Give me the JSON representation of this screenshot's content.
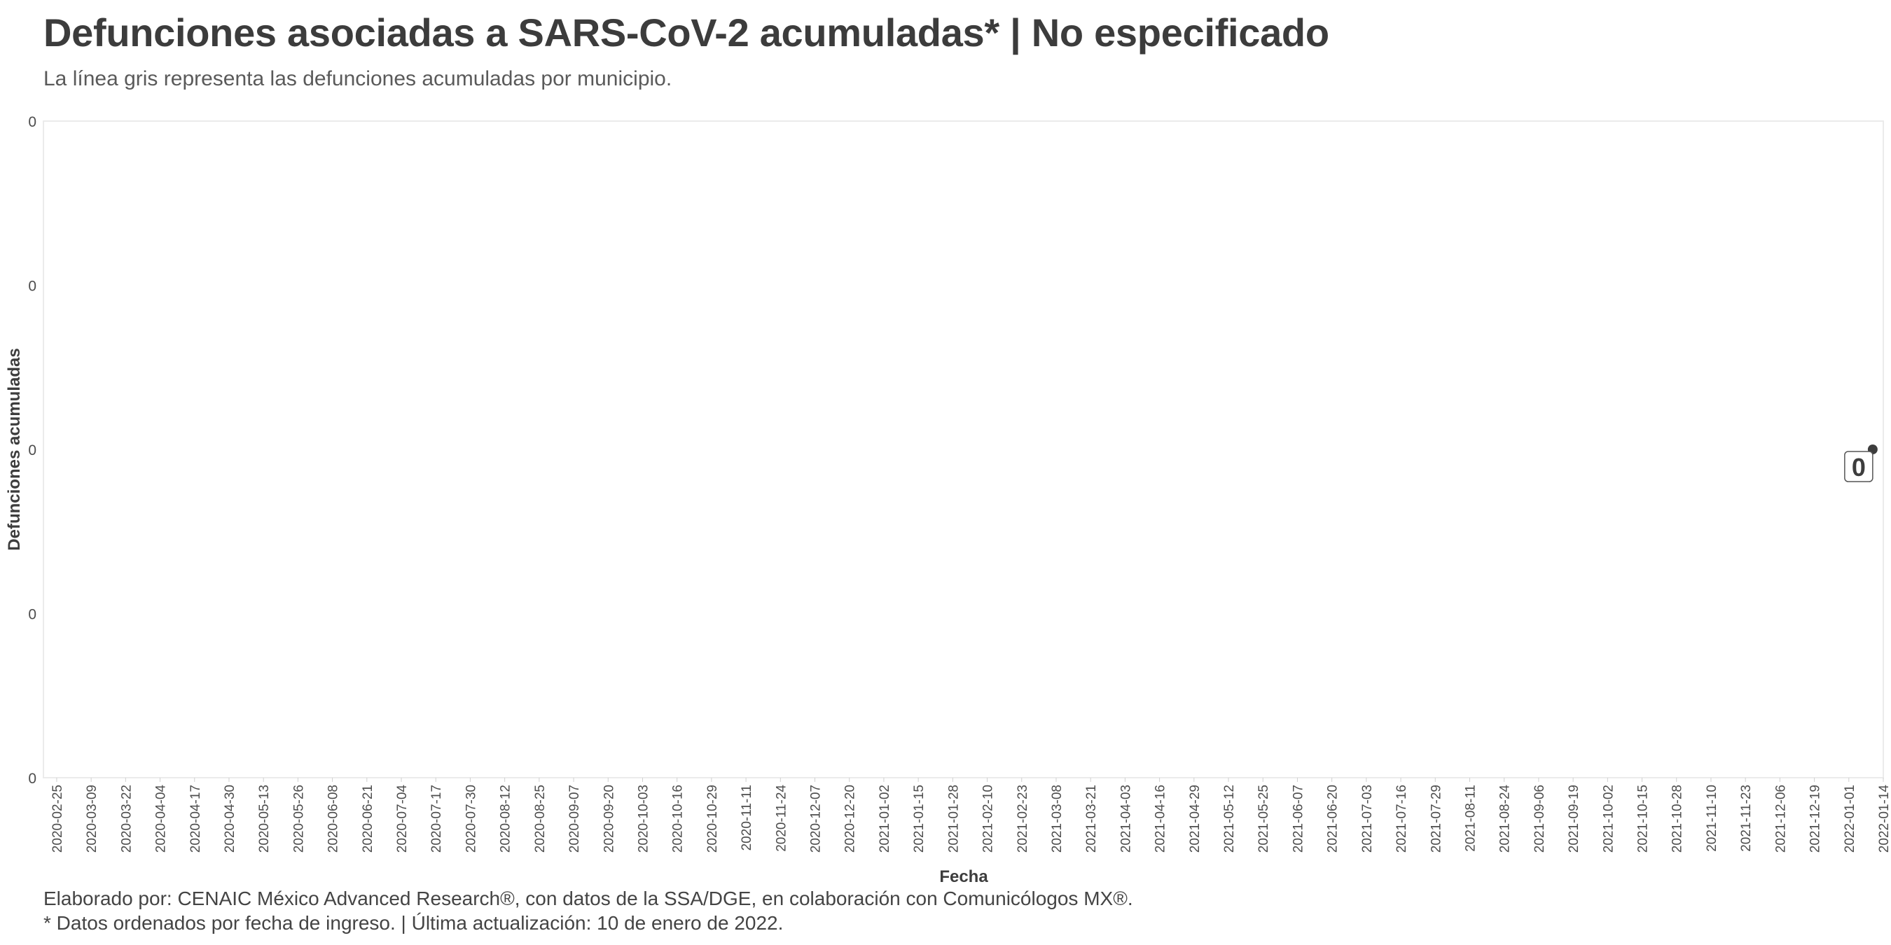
{
  "chart_data": {
    "type": "line",
    "title": "Defunciones asociadas a SARS-CoV-2 acumuladas* | No especificado",
    "subtitle": "La línea gris representa las defunciones acumuladas por municipio.",
    "xlabel": "Fecha",
    "ylabel": "Defunciones acumuladas",
    "x_ticks": [
      "2020-02-25",
      "2020-03-09",
      "2020-03-22",
      "2020-04-04",
      "2020-04-17",
      "2020-04-30",
      "2020-05-13",
      "2020-05-26",
      "2020-06-08",
      "2020-06-21",
      "2020-07-04",
      "2020-07-17",
      "2020-07-30",
      "2020-08-12",
      "2020-08-25",
      "2020-09-07",
      "2020-09-20",
      "2020-10-03",
      "2020-10-16",
      "2020-10-29",
      "2020-11-11",
      "2020-11-24",
      "2020-12-07",
      "2020-12-20",
      "2021-01-02",
      "2021-01-15",
      "2021-01-28",
      "2021-02-10",
      "2021-02-23",
      "2021-03-08",
      "2021-03-21",
      "2021-04-03",
      "2021-04-16",
      "2021-04-29",
      "2021-05-12",
      "2021-05-25",
      "2021-06-07",
      "2021-06-20",
      "2021-07-03",
      "2021-07-16",
      "2021-07-29",
      "2021-08-11",
      "2021-08-24",
      "2021-09-06",
      "2021-09-19",
      "2021-10-02",
      "2021-10-15",
      "2021-10-28",
      "2021-11-10",
      "2021-11-23",
      "2021-12-06",
      "2021-12-19",
      "2022-01-01",
      "2022-01-14"
    ],
    "y_ticks": [
      "0",
      "0",
      "0",
      "0",
      "0"
    ],
    "xlim": [
      "2020-02-20",
      "2022-01-14"
    ],
    "ylim": [
      -1,
      1
    ],
    "series": [
      {
        "points": [
          {
            "x": "2022-01-10",
            "y": 0
          }
        ],
        "color": "#3d3d3d"
      }
    ],
    "annotations": [
      {
        "x": "2022-01-10",
        "y": 0,
        "label": "0"
      }
    ],
    "grid": false
  },
  "caption": {
    "line1": "Elaborado por: CENAIC México Advanced Research®, con datos de la SSA/DGE, en colaboración con Comunicólogos MX®.",
    "line2": "* Datos ordenados por fecha de ingreso. | Última actualización: 10 de enero de 2022."
  },
  "colors": {
    "text": "#3d3d3d",
    "panel_border": "#ebebeb",
    "point": "#3d3d3d"
  }
}
